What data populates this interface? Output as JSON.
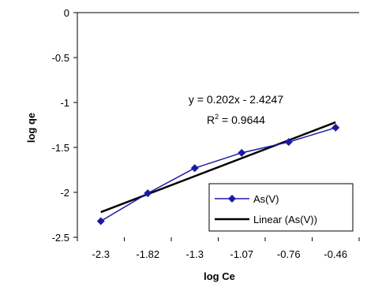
{
  "chart_data": {
    "type": "scatter",
    "title": "",
    "xlabel": "log Ce",
    "ylabel": "log qe",
    "categories": [
      "-2.3",
      "-1.82",
      "-1.3",
      "-1.07",
      "-0.76",
      "-0.46"
    ],
    "ylim": [
      -2.5,
      0
    ],
    "yticks": [
      "0",
      "-0.5",
      "-1",
      "-1.5",
      "-2",
      "-2.5"
    ],
    "ytick_values": [
      0,
      -0.5,
      -1,
      -1.5,
      -2,
      -2.5
    ],
    "grid": false,
    "legend_position": "bottom-right",
    "series": [
      {
        "name": "As(V)",
        "values": [
          -2.32,
          -2.01,
          -1.73,
          -1.56,
          -1.44,
          -1.28
        ],
        "color": "#1a1aa6",
        "marker": "diamond",
        "line": true
      }
    ],
    "trendline": {
      "name": "Linear (As(V))",
      "color": "#000000",
      "start": -2.22,
      "end": -1.22
    },
    "annotations": {
      "equation": "y = 0.202x - 2.4247",
      "r2_prefix": "R",
      "r2_sup": "2",
      "r2_value": " = 0.9644"
    }
  }
}
